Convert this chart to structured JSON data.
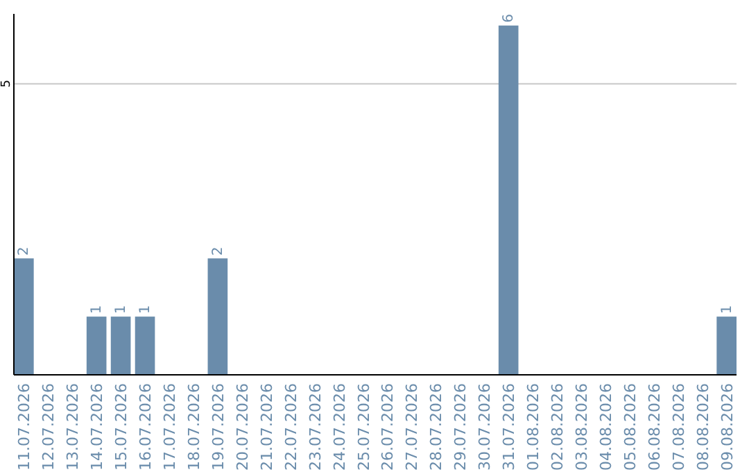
{
  "chart_data": {
    "type": "bar",
    "categories": [
      "11.07.2026",
      "12.07.2026",
      "13.07.2026",
      "14.07.2026",
      "15.07.2026",
      "16.07.2026",
      "17.07.2026",
      "18.07.2026",
      "19.07.2026",
      "20.07.2026",
      "21.07.2026",
      "22.07.2026",
      "23.07.2026",
      "24.07.2026",
      "25.07.2026",
      "26.07.2026",
      "27.07.2026",
      "28.07.2026",
      "29.07.2026",
      "30.07.2026",
      "31.07.2026",
      "01.08.2026",
      "02.08.2026",
      "03.08.2026",
      "04.08.2026",
      "05.08.2026",
      "06.08.2026",
      "07.08.2026",
      "08.08.2026",
      "09.08.2026"
    ],
    "values": [
      2,
      0,
      0,
      1,
      1,
      1,
      0,
      0,
      2,
      0,
      0,
      0,
      0,
      0,
      0,
      0,
      0,
      0,
      0,
      0,
      6,
      0,
      0,
      0,
      0,
      0,
      0,
      0,
      0,
      1
    ],
    "value_labels": [
      "2",
      null,
      null,
      "1",
      "1",
      "1",
      null,
      null,
      "2",
      null,
      null,
      null,
      null,
      null,
      null,
      null,
      null,
      null,
      null,
      null,
      "6",
      null,
      null,
      null,
      null,
      null,
      null,
      null,
      null,
      "1"
    ],
    "color": "#6a8cab",
    "ylim": [
      0,
      6.2
    ],
    "yticks": [
      5
    ],
    "grid": "y"
  }
}
